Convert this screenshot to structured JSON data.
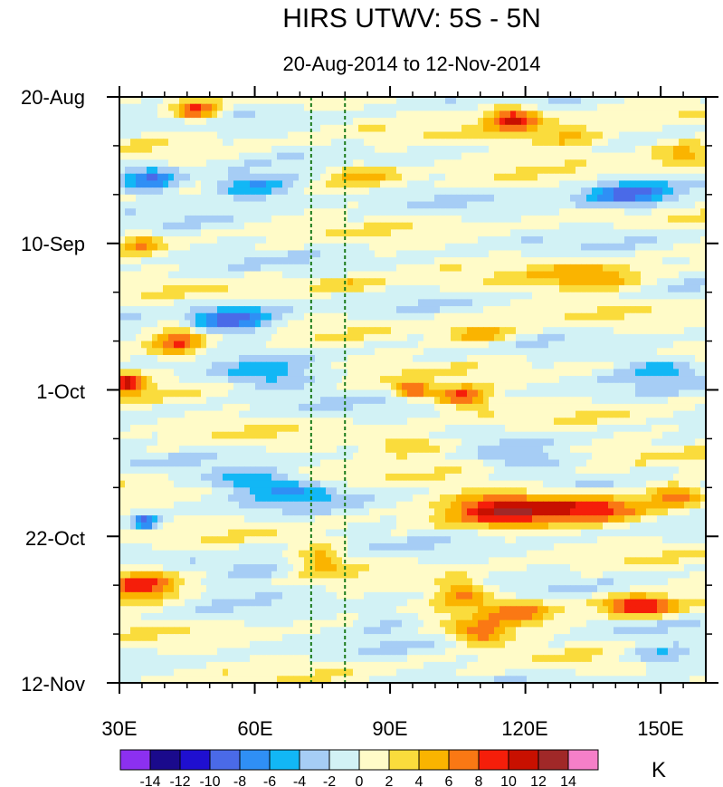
{
  "chart_data": {
    "type": "heatmap",
    "title": "HIRS UTWV: 5S - 5N",
    "subtitle": "20-Aug-2014 to 12-Nov-2014",
    "x_axis": {
      "range": [
        30,
        160
      ],
      "tick_labels": [
        "30E",
        "60E",
        "90E",
        "120E",
        "150E"
      ],
      "tick_values": [
        30,
        60,
        90,
        120,
        150
      ]
    },
    "y_axis": {
      "range_days": [
        0,
        84
      ],
      "tick_labels": [
        "20-Aug",
        "10-Sep",
        "1-Oct",
        "22-Oct",
        "12-Nov"
      ],
      "tick_days": [
        0,
        21,
        42,
        63,
        84
      ],
      "reversed": true
    },
    "reference_lines_lon": [
      72.5,
      80
    ],
    "colorbar": {
      "unit": "K",
      "levels": [
        -14,
        -12,
        -10,
        -8,
        -6,
        -4,
        -2,
        0,
        2,
        4,
        6,
        8,
        10,
        12,
        14
      ],
      "labels": [
        "-14",
        "-12",
        "-10",
        "-8",
        "-6",
        "-4",
        "-2",
        "0",
        "2",
        "4",
        "6",
        "8",
        "10",
        "12",
        "14"
      ],
      "colors": [
        "#8c30f0",
        "#1a0a8c",
        "#1f0fd0",
        "#4a6ae8",
        "#2f8ff5",
        "#12b7f5",
        "#a6cdf5",
        "#d2f2f5",
        "#fffbc8",
        "#fadc3c",
        "#fab400",
        "#fa7814",
        "#f51e0a",
        "#c81000",
        "#a02828",
        "#f57fc8"
      ]
    }
  }
}
